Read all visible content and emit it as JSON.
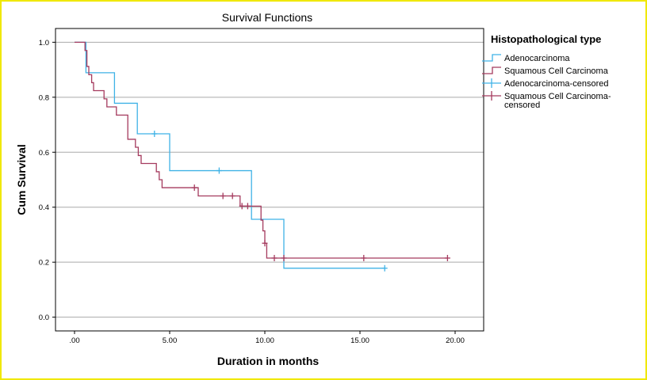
{
  "chart_data": {
    "type": "line",
    "title": "Survival Functions",
    "xlabel": "Duration in months",
    "ylabel": "Cum Survival",
    "xlim": [
      -1,
      21.5
    ],
    "ylim": [
      -0.05,
      1.05
    ],
    "x_ticks": [
      0,
      5,
      10,
      15,
      20
    ],
    "x_tick_labels": [
      ".00",
      "5.00",
      "10.00",
      "15.00",
      "20.00"
    ],
    "y_ticks": [
      0,
      0.2,
      0.4,
      0.6,
      0.8,
      1.0
    ],
    "y_tick_labels": [
      "0.0",
      "0.2",
      "0.4",
      "0.6",
      "0.8",
      "1.0"
    ],
    "grid": "horizontal",
    "legend_title": "Histopathological type",
    "legend_position": "right",
    "legend_entries": [
      {
        "label": "Adenocarcinoma",
        "label_lines": [
          "Adenocarcinoma"
        ],
        "series": 0,
        "kind": "step"
      },
      {
        "label": "Squamous Cell Carcinoma",
        "label_lines": [
          "Squamous Cell Carcinoma"
        ],
        "series": 1,
        "kind": "step"
      },
      {
        "label": "Adenocarcinoma-censored",
        "label_lines": [
          "Adenocarcinoma-censored"
        ],
        "series": 0,
        "kind": "censor"
      },
      {
        "label": "Squamous Cell Carcinoma-censored",
        "label_lines": [
          "Squamous Cell Carcinoma-",
          "censored"
        ],
        "series": 1,
        "kind": "censor"
      }
    ],
    "series": [
      {
        "name": "Adenocarcinoma",
        "color": "#3fb2e6",
        "steps": [
          [
            0,
            1.0
          ],
          [
            0.6,
            0.889
          ],
          [
            2.1,
            0.778
          ],
          [
            3.3,
            0.667
          ],
          [
            5.0,
            0.533
          ],
          [
            9.3,
            0.356
          ],
          [
            11.0,
            0.178
          ],
          [
            16.3,
            0.178
          ]
        ],
        "censored": [
          [
            4.2,
            0.667
          ],
          [
            7.6,
            0.533
          ],
          [
            16.3,
            0.178
          ]
        ]
      },
      {
        "name": "Squamous Cell Carcinoma",
        "color": "#a53a5e",
        "steps": [
          [
            0,
            1.0
          ],
          [
            0.55,
            0.97
          ],
          [
            0.65,
            0.912
          ],
          [
            0.75,
            0.882
          ],
          [
            0.9,
            0.853
          ],
          [
            1.0,
            0.824
          ],
          [
            1.55,
            0.794
          ],
          [
            1.7,
            0.765
          ],
          [
            2.2,
            0.735
          ],
          [
            2.8,
            0.647
          ],
          [
            3.2,
            0.618
          ],
          [
            3.35,
            0.588
          ],
          [
            3.5,
            0.559
          ],
          [
            4.3,
            0.529
          ],
          [
            4.45,
            0.5
          ],
          [
            4.6,
            0.471
          ],
          [
            6.5,
            0.441
          ],
          [
            8.7,
            0.404
          ],
          [
            9.8,
            0.353
          ],
          [
            9.9,
            0.314
          ],
          [
            10.0,
            0.269
          ],
          [
            10.1,
            0.215
          ],
          [
            19.6,
            0.215
          ]
        ],
        "censored": [
          [
            6.3,
            0.471
          ],
          [
            7.8,
            0.441
          ],
          [
            8.3,
            0.441
          ],
          [
            8.8,
            0.404
          ],
          [
            9.1,
            0.404
          ],
          [
            10.0,
            0.269
          ],
          [
            10.5,
            0.215
          ],
          [
            11.0,
            0.215
          ],
          [
            15.2,
            0.215
          ],
          [
            19.6,
            0.215
          ]
        ]
      }
    ]
  }
}
